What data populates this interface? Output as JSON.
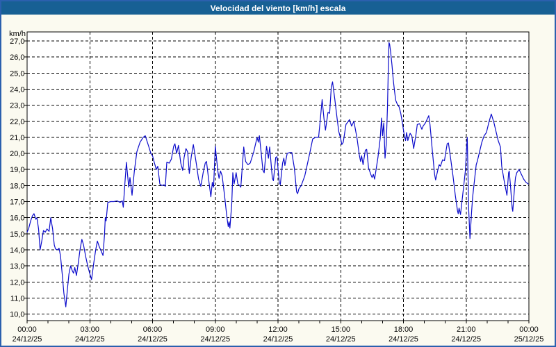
{
  "title": "Velocidad del viento [km/h] escala",
  "colors": {
    "titlebar_bg": "#176094",
    "titlebar_text": "#FFFFFF",
    "page_bg": "#FBFAF0",
    "outer_border": "#2B60AE",
    "plot_bg": "#FFFFFF",
    "grid": "#000000",
    "axis_text": "#000000",
    "line": "#0B0BCB"
  },
  "chart_data": {
    "type": "line",
    "title": "Velocidad del viento [km/h] escala",
    "y_unit_label": "km/h",
    "ylabel": "",
    "xlabel": "",
    "ylim": [
      10,
      27
    ],
    "y_tick_step": 1,
    "y_ticks": [
      {
        "value": 27,
        "label": "27,0"
      },
      {
        "value": 26,
        "label": "26,0"
      },
      {
        "value": 25,
        "label": "25,0"
      },
      {
        "value": 24,
        "label": "24,0"
      },
      {
        "value": 23,
        "label": "23,0"
      },
      {
        "value": 22,
        "label": "22,0"
      },
      {
        "value": 21,
        "label": "21,0"
      },
      {
        "value": 20,
        "label": "20,0"
      },
      {
        "value": 19,
        "label": "19,0"
      },
      {
        "value": 18,
        "label": "18,0"
      },
      {
        "value": 17,
        "label": "17,0"
      },
      {
        "value": 16,
        "label": "16,0"
      },
      {
        "value": 15,
        "label": "15,0"
      },
      {
        "value": 14,
        "label": "14,0"
      },
      {
        "value": 13,
        "label": "13,0"
      },
      {
        "value": 12,
        "label": "12,0"
      },
      {
        "value": 11,
        "label": "11,0"
      },
      {
        "value": 10,
        "label": "10,0"
      }
    ],
    "x_range_hours": [
      0,
      24
    ],
    "x_minor_tick_hours": 1,
    "x_major_tick_hours": 3,
    "x_ticks": [
      {
        "hour": 0,
        "time": "00:00",
        "date": "24/12/25"
      },
      {
        "hour": 3,
        "time": "03:00",
        "date": "24/12/25"
      },
      {
        "hour": 6,
        "time": "06:00",
        "date": "24/12/25"
      },
      {
        "hour": 9,
        "time": "09:00",
        "date": "24/12/25"
      },
      {
        "hour": 12,
        "time": "12:00",
        "date": "24/12/25"
      },
      {
        "hour": 15,
        "time": "15:00",
        "date": "24/12/25"
      },
      {
        "hour": 18,
        "time": "18:00",
        "date": "24/12/25"
      },
      {
        "hour": 21,
        "time": "21:00",
        "date": "24/12/25"
      },
      {
        "hour": 24,
        "time": "00:00",
        "date": "25/12/25"
      }
    ],
    "grid": "dashed",
    "legend": "none",
    "series": [
      {
        "name": "Velocidad del viento",
        "color": "#0B0BCB",
        "points": [
          [
            0.0,
            15.1
          ],
          [
            0.08,
            15.35
          ],
          [
            0.17,
            15.8
          ],
          [
            0.25,
            16.1
          ],
          [
            0.33,
            16.25
          ],
          [
            0.42,
            15.9
          ],
          [
            0.47,
            16.0
          ],
          [
            0.55,
            15.3
          ],
          [
            0.62,
            14.0
          ],
          [
            0.7,
            14.55
          ],
          [
            0.78,
            15.2
          ],
          [
            0.87,
            15.1
          ],
          [
            0.95,
            15.3
          ],
          [
            1.05,
            15.15
          ],
          [
            1.13,
            16.0
          ],
          [
            1.22,
            15.3
          ],
          [
            1.3,
            14.3
          ],
          [
            1.36,
            14.05
          ],
          [
            1.45,
            14.0
          ],
          [
            1.53,
            14.1
          ],
          [
            1.6,
            13.6
          ],
          [
            1.68,
            12.5
          ],
          [
            1.76,
            11.3
          ],
          [
            1.85,
            10.45
          ],
          [
            1.93,
            11.6
          ],
          [
            2.0,
            12.5
          ],
          [
            2.08,
            13.0
          ],
          [
            2.16,
            12.7
          ],
          [
            2.22,
            12.55
          ],
          [
            2.28,
            12.9
          ],
          [
            2.36,
            12.4
          ],
          [
            2.45,
            13.2
          ],
          [
            2.53,
            14.0
          ],
          [
            2.62,
            14.65
          ],
          [
            2.7,
            14.3
          ],
          [
            2.8,
            13.6
          ],
          [
            2.9,
            13.0
          ],
          [
            3.0,
            12.5
          ],
          [
            3.08,
            12.15
          ],
          [
            3.2,
            13.3
          ],
          [
            3.28,
            14.0
          ],
          [
            3.36,
            14.55
          ],
          [
            3.45,
            14.2
          ],
          [
            3.55,
            13.9
          ],
          [
            3.63,
            13.65
          ],
          [
            3.7,
            14.9
          ],
          [
            3.74,
            16.0
          ],
          [
            3.78,
            15.8
          ],
          [
            3.86,
            16.95
          ],
          [
            4.0,
            17.0
          ],
          [
            4.15,
            17.0
          ],
          [
            4.3,
            17.05
          ],
          [
            4.45,
            16.95
          ],
          [
            4.55,
            17.05
          ],
          [
            4.6,
            16.65
          ],
          [
            4.68,
            18.2
          ],
          [
            4.75,
            19.45
          ],
          [
            4.81,
            18.6
          ],
          [
            4.86,
            17.9
          ],
          [
            4.92,
            18.5
          ],
          [
            5.02,
            17.4
          ],
          [
            5.13,
            18.9
          ],
          [
            5.25,
            20.1
          ],
          [
            5.4,
            20.7
          ],
          [
            5.55,
            21.0
          ],
          [
            5.65,
            21.1
          ],
          [
            5.8,
            20.5
          ],
          [
            5.92,
            20.0
          ],
          [
            6.0,
            19.85
          ],
          [
            6.08,
            19.45
          ],
          [
            6.18,
            19.0
          ],
          [
            6.25,
            19.2
          ],
          [
            6.35,
            18.1
          ],
          [
            6.45,
            18.0
          ],
          [
            6.55,
            18.05
          ],
          [
            6.61,
            17.95
          ],
          [
            6.68,
            19.45
          ],
          [
            6.8,
            19.4
          ],
          [
            6.9,
            19.65
          ],
          [
            7.01,
            20.45
          ],
          [
            7.07,
            20.6
          ],
          [
            7.15,
            20.0
          ],
          [
            7.24,
            20.5
          ],
          [
            7.35,
            19.4
          ],
          [
            7.44,
            18.95
          ],
          [
            7.51,
            19.75
          ],
          [
            7.6,
            20.3
          ],
          [
            7.68,
            20.1
          ],
          [
            7.76,
            18.75
          ],
          [
            7.85,
            19.8
          ],
          [
            7.95,
            20.55
          ],
          [
            8.1,
            19.3
          ],
          [
            8.2,
            18.4
          ],
          [
            8.31,
            17.95
          ],
          [
            8.42,
            18.8
          ],
          [
            8.52,
            19.4
          ],
          [
            8.58,
            19.5
          ],
          [
            8.7,
            18.2
          ],
          [
            8.79,
            17.3
          ],
          [
            8.86,
            18.2
          ],
          [
            8.92,
            17.9
          ],
          [
            9.0,
            20.45
          ],
          [
            9.12,
            18.9
          ],
          [
            9.18,
            18.45
          ],
          [
            9.25,
            18.9
          ],
          [
            9.33,
            18.6
          ],
          [
            9.45,
            17.3
          ],
          [
            9.55,
            16.1
          ],
          [
            9.62,
            15.45
          ],
          [
            9.66,
            15.75
          ],
          [
            9.7,
            15.35
          ],
          [
            9.79,
            16.9
          ],
          [
            9.84,
            18.8
          ],
          [
            9.9,
            18.1
          ],
          [
            10.0,
            18.8
          ],
          [
            10.08,
            18.1
          ],
          [
            10.17,
            18.0
          ],
          [
            10.22,
            17.9
          ],
          [
            10.36,
            20.4
          ],
          [
            10.45,
            19.5
          ],
          [
            10.56,
            19.3
          ],
          [
            10.67,
            19.4
          ],
          [
            10.84,
            20.1
          ],
          [
            11.0,
            21.0
          ],
          [
            11.06,
            20.7
          ],
          [
            11.11,
            21.1
          ],
          [
            11.2,
            20.0
          ],
          [
            11.28,
            18.95
          ],
          [
            11.34,
            18.8
          ],
          [
            11.45,
            20.45
          ],
          [
            11.54,
            19.7
          ],
          [
            11.6,
            20.4
          ],
          [
            11.73,
            18.45
          ],
          [
            11.78,
            18.3
          ],
          [
            11.89,
            19.75
          ],
          [
            11.95,
            19.8
          ],
          [
            12.06,
            18.2
          ],
          [
            12.11,
            18.05
          ],
          [
            12.22,
            19.4
          ],
          [
            12.28,
            19.7
          ],
          [
            12.33,
            19.25
          ],
          [
            12.44,
            20.0
          ],
          [
            12.55,
            20.05
          ],
          [
            12.66,
            20.05
          ],
          [
            12.78,
            19.1
          ],
          [
            12.89,
            17.6
          ],
          [
            12.94,
            17.5
          ],
          [
            13.0,
            17.8
          ],
          [
            13.11,
            18.0
          ],
          [
            13.28,
            18.6
          ],
          [
            13.4,
            19.3
          ],
          [
            13.55,
            20.2
          ],
          [
            13.66,
            20.9
          ],
          [
            13.8,
            21.0
          ],
          [
            13.94,
            21.0
          ],
          [
            14.0,
            21.8
          ],
          [
            14.11,
            23.35
          ],
          [
            14.2,
            22.15
          ],
          [
            14.27,
            21.45
          ],
          [
            14.39,
            22.55
          ],
          [
            14.47,
            22.5
          ],
          [
            14.55,
            24.15
          ],
          [
            14.61,
            24.45
          ],
          [
            14.72,
            23.35
          ],
          [
            14.83,
            22.15
          ],
          [
            14.91,
            21.35
          ],
          [
            15.0,
            20.9
          ],
          [
            15.05,
            20.55
          ],
          [
            15.12,
            20.7
          ],
          [
            15.25,
            21.8
          ],
          [
            15.42,
            22.1
          ],
          [
            15.52,
            21.7
          ],
          [
            15.63,
            22.0
          ],
          [
            15.78,
            20.95
          ],
          [
            15.89,
            19.9
          ],
          [
            15.95,
            19.5
          ],
          [
            16.0,
            19.85
          ],
          [
            16.07,
            19.3
          ],
          [
            16.18,
            20.2
          ],
          [
            16.24,
            20.25
          ],
          [
            16.33,
            19.1
          ],
          [
            16.45,
            18.65
          ],
          [
            16.5,
            18.5
          ],
          [
            16.56,
            18.7
          ],
          [
            16.62,
            18.4
          ],
          [
            16.78,
            19.75
          ],
          [
            16.89,
            20.95
          ],
          [
            16.95,
            22.2
          ],
          [
            17.0,
            21.1
          ],
          [
            17.06,
            21.9
          ],
          [
            17.12,
            19.7
          ],
          [
            17.18,
            20.6
          ],
          [
            17.24,
            23.0
          ],
          [
            17.28,
            25.5
          ],
          [
            17.31,
            26.9
          ],
          [
            17.34,
            26.8
          ],
          [
            17.39,
            26.3
          ],
          [
            17.45,
            25.5
          ],
          [
            17.51,
            24.6
          ],
          [
            17.57,
            23.9
          ],
          [
            17.63,
            23.3
          ],
          [
            17.71,
            23.05
          ],
          [
            17.79,
            22.9
          ],
          [
            17.87,
            22.5
          ],
          [
            17.95,
            21.9
          ],
          [
            18.03,
            21.2
          ],
          [
            18.1,
            20.8
          ],
          [
            18.15,
            21.3
          ],
          [
            18.21,
            20.8
          ],
          [
            18.32,
            21.25
          ],
          [
            18.4,
            21.1
          ],
          [
            18.49,
            20.3
          ],
          [
            18.6,
            21.2
          ],
          [
            18.66,
            21.8
          ],
          [
            18.77,
            21.85
          ],
          [
            18.88,
            21.5
          ],
          [
            18.94,
            21.7
          ],
          [
            19.05,
            21.9
          ],
          [
            19.21,
            22.35
          ],
          [
            19.27,
            21.8
          ],
          [
            19.38,
            20.2
          ],
          [
            19.49,
            18.7
          ],
          [
            19.54,
            18.35
          ],
          [
            19.65,
            19.0
          ],
          [
            19.71,
            19.3
          ],
          [
            19.77,
            19.2
          ],
          [
            19.87,
            19.6
          ],
          [
            19.96,
            19.55
          ],
          [
            20.09,
            20.6
          ],
          [
            20.15,
            20.65
          ],
          [
            20.26,
            19.65
          ],
          [
            20.37,
            18.6
          ],
          [
            20.48,
            17.4
          ],
          [
            20.59,
            16.4
          ],
          [
            20.62,
            16.25
          ],
          [
            20.66,
            16.6
          ],
          [
            20.73,
            16.2
          ],
          [
            20.86,
            17.7
          ],
          [
            20.97,
            19.0
          ],
          [
            21.0,
            19.9
          ],
          [
            21.05,
            21.0
          ],
          [
            21.12,
            16.5
          ],
          [
            21.18,
            14.7
          ],
          [
            21.26,
            16.4
          ],
          [
            21.31,
            17.3
          ],
          [
            21.42,
            18.6
          ],
          [
            21.48,
            19.3
          ],
          [
            21.53,
            19.5
          ],
          [
            21.64,
            20.1
          ],
          [
            21.75,
            20.7
          ],
          [
            21.86,
            21.1
          ],
          [
            21.97,
            21.3
          ],
          [
            22.08,
            21.9
          ],
          [
            22.2,
            22.45
          ],
          [
            22.33,
            21.9
          ],
          [
            22.42,
            21.4
          ],
          [
            22.53,
            20.8
          ],
          [
            22.64,
            20.4
          ],
          [
            22.7,
            19.2
          ],
          [
            22.81,
            18.35
          ],
          [
            22.89,
            17.8
          ],
          [
            22.95,
            17.4
          ],
          [
            23.03,
            18.8
          ],
          [
            23.06,
            18.9
          ],
          [
            23.12,
            18.0
          ],
          [
            23.2,
            16.6
          ],
          [
            23.23,
            16.4
          ],
          [
            23.31,
            17.8
          ],
          [
            23.36,
            18.5
          ],
          [
            23.42,
            18.8
          ],
          [
            23.53,
            19.0
          ],
          [
            23.64,
            18.7
          ],
          [
            23.75,
            18.4
          ],
          [
            23.86,
            18.2
          ],
          [
            23.97,
            18.1
          ]
        ]
      }
    ]
  }
}
